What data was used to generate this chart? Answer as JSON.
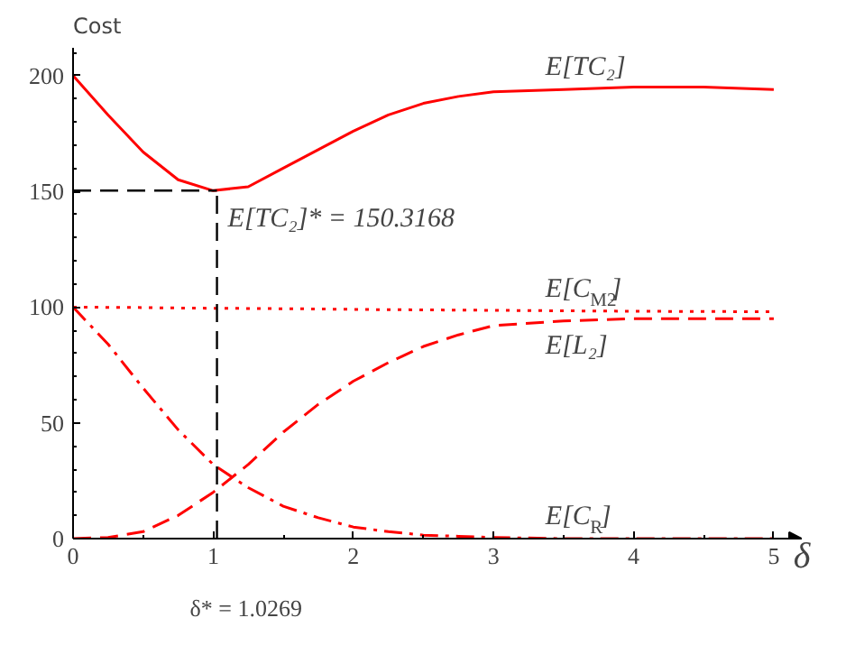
{
  "chart_data": {
    "type": "line",
    "xlabel": "δ",
    "ylabel": "Cost",
    "xlim": [
      0,
      5.2
    ],
    "ylim": [
      0,
      212
    ],
    "xticks": [
      0,
      1,
      2,
      3,
      4,
      5
    ],
    "yticks": [
      0,
      50,
      100,
      150,
      200
    ],
    "grid": false,
    "x": [
      0,
      0.25,
      0.5,
      0.75,
      1,
      1.25,
      1.5,
      1.75,
      2,
      2.25,
      2.5,
      2.75,
      3,
      3.5,
      4,
      4.5,
      5
    ],
    "series": [
      {
        "name": "E[TC₂]",
        "color": "#ff0000",
        "line_style": "solid",
        "values": [
          200,
          183,
          167,
          155,
          150.3,
          152,
          160,
          168,
          176,
          183,
          188,
          191,
          193,
          194,
          195,
          195,
          194
        ]
      },
      {
        "name": "E[C$_{M2}$]",
        "color": "#ff0000",
        "line_style": "dotted",
        "values": [
          100,
          99.9,
          99.8,
          99.6,
          99.5,
          99.4,
          99.3,
          99.2,
          99,
          98.9,
          98.8,
          98.7,
          98.6,
          98.4,
          98.2,
          98.1,
          98
        ]
      },
      {
        "name": "E[L₂]",
        "color": "#ff0000",
        "line_style": "dashed",
        "values": [
          0,
          0.5,
          3,
          10,
          20,
          32,
          46,
          58,
          68,
          76,
          83,
          88,
          92,
          94,
          95,
          95,
          95
        ]
      },
      {
        "name": "E[C$_{R}$]",
        "color": "#ff0000",
        "line_style": "dashdot",
        "values": [
          100,
          84,
          65,
          47,
          32,
          22,
          14,
          9,
          5,
          3,
          1.5,
          1,
          0.5,
          0,
          0,
          0,
          0
        ]
      }
    ],
    "ref_lines": [
      {
        "axis": "x",
        "value": 1.0269,
        "label": "δ* = 1.0269",
        "color": "#000000",
        "line_style": "dashed"
      },
      {
        "axis": "y",
        "value": 150.3168,
        "label": "E[TC₂]* = 150.3168",
        "color": "#000000",
        "line_style": "dashed"
      }
    ]
  }
}
